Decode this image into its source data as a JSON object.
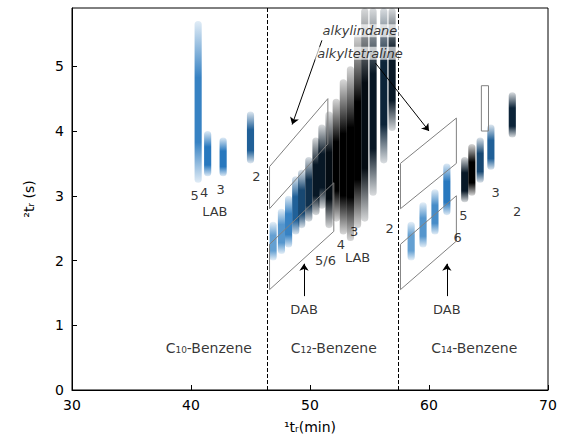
{
  "chart_data": {
    "type": "gcxgc",
    "x_label": "¹tᵣ(min)",
    "y_label": "²tᵣ (s)",
    "xlim": [
      30,
      70
    ],
    "xticks": [
      30,
      40,
      50,
      60,
      70
    ],
    "ylim": [
      0,
      5.9
    ],
    "yticks": [
      0,
      1,
      2,
      3,
      4,
      5
    ],
    "grid": false,
    "dividers": [
      46.4,
      57.4
    ],
    "peaks": [
      {
        "x": 40.6,
        "y_start": 3.2,
        "y_end": 5.7,
        "intensity": 0.45
      },
      {
        "x": 41.4,
        "y_start": 3.3,
        "y_end": 4.0,
        "intensity": 0.5
      },
      {
        "x": 42.7,
        "y_start": 3.3,
        "y_end": 3.9,
        "intensity": 0.5
      },
      {
        "x": 45.0,
        "y_start": 3.5,
        "y_end": 4.3,
        "intensity": 0.6
      },
      {
        "x": 46.9,
        "y_start": 2.0,
        "y_end": 2.6,
        "intensity": 0.3
      },
      {
        "x": 47.6,
        "y_start": 2.1,
        "y_end": 2.8,
        "intensity": 0.35
      },
      {
        "x": 48.2,
        "y_start": 2.2,
        "y_end": 3.0,
        "intensity": 0.45
      },
      {
        "x": 48.8,
        "y_start": 2.4,
        "y_end": 3.3,
        "intensity": 0.6
      },
      {
        "x": 49.3,
        "y_start": 2.5,
        "y_end": 3.4,
        "intensity": 0.7
      },
      {
        "x": 49.9,
        "y_start": 2.6,
        "y_end": 3.6,
        "intensity": 0.8
      },
      {
        "x": 50.5,
        "y_start": 2.7,
        "y_end": 3.9,
        "intensity": 0.9
      },
      {
        "x": 51.0,
        "y_start": 2.8,
        "y_end": 4.1,
        "intensity": 0.9
      },
      {
        "x": 51.6,
        "y_start": 2.5,
        "y_end": 4.3,
        "intensity": 0.95
      },
      {
        "x": 52.2,
        "y_start": 2.6,
        "y_end": 4.5,
        "intensity": 1.0
      },
      {
        "x": 52.8,
        "y_start": 2.4,
        "y_end": 4.8,
        "intensity": 1.0
      },
      {
        "x": 53.4,
        "y_start": 2.3,
        "y_end": 5.0,
        "intensity": 1.0
      },
      {
        "x": 54.0,
        "y_start": 2.5,
        "y_end": 5.5,
        "intensity": 1.0
      },
      {
        "x": 54.6,
        "y_start": 2.6,
        "y_end": 5.9,
        "intensity": 0.95
      },
      {
        "x": 55.3,
        "y_start": 3.0,
        "y_end": 5.9,
        "intensity": 0.9
      },
      {
        "x": 56.2,
        "y_start": 3.5,
        "y_end": 5.9,
        "intensity": 0.85
      },
      {
        "x": 56.9,
        "y_start": 4.0,
        "y_end": 5.9,
        "intensity": 0.9
      },
      {
        "x": 58.5,
        "y_start": 2.0,
        "y_end": 2.6,
        "intensity": 0.3
      },
      {
        "x": 59.5,
        "y_start": 2.2,
        "y_end": 2.9,
        "intensity": 0.35
      },
      {
        "x": 60.5,
        "y_start": 2.4,
        "y_end": 3.1,
        "intensity": 0.4
      },
      {
        "x": 61.5,
        "y_start": 2.7,
        "y_end": 3.5,
        "intensity": 0.5
      },
      {
        "x": 63.0,
        "y_start": 2.9,
        "y_end": 3.6,
        "intensity": 0.9
      },
      {
        "x": 63.6,
        "y_start": 3.0,
        "y_end": 3.8,
        "intensity": 1.0
      },
      {
        "x": 64.3,
        "y_start": 3.2,
        "y_end": 3.9,
        "intensity": 0.7
      },
      {
        "x": 65.2,
        "y_start": 3.4,
        "y_end": 4.1,
        "intensity": 0.6
      },
      {
        "x": 67.0,
        "y_start": 3.9,
        "y_end": 4.6,
        "intensity": 0.85
      }
    ],
    "regions": [
      [
        [
          46.6,
          1.55
        ],
        [
          46.6,
          2.25
        ],
        [
          52.0,
          3.2
        ],
        [
          52.0,
          2.45
        ]
      ],
      [
        [
          46.6,
          2.8
        ],
        [
          46.6,
          3.45
        ],
        [
          51.5,
          4.5
        ],
        [
          51.5,
          3.8
        ]
      ],
      [
        [
          57.6,
          1.55
        ],
        [
          57.6,
          2.25
        ],
        [
          62.3,
          3.0
        ],
        [
          62.3,
          2.3
        ]
      ],
      [
        [
          57.6,
          2.8
        ],
        [
          57.6,
          3.5
        ],
        [
          62.3,
          4.2
        ],
        [
          62.3,
          3.5
        ]
      ],
      [
        [
          64.4,
          4.0
        ],
        [
          64.4,
          4.7
        ],
        [
          65.0,
          4.7
        ],
        [
          65.0,
          4.0
        ]
      ]
    ],
    "arrows": [
      {
        "from": [
          51.0,
          5.4
        ],
        "to": [
          48.5,
          4.1
        ]
      },
      {
        "from": [
          55.5,
          5.05
        ],
        "to": [
          60.0,
          4.0
        ]
      },
      {
        "from": [
          49.5,
          1.45
        ],
        "to": [
          49.5,
          1.95
        ]
      },
      {
        "from": [
          61.5,
          1.45
        ],
        "to": [
          61.5,
          1.95
        ]
      }
    ],
    "region_labels": [
      {
        "text": "alkylindane",
        "x": 54.2,
        "y": 5.55
      },
      {
        "text": "alkyltetraline",
        "x": 54.2,
        "y": 5.2
      }
    ],
    "annotations": [
      {
        "text": "5",
        "x": 40.3,
        "y": 3.0
      },
      {
        "text": "4",
        "x": 41.1,
        "y": 3.05
      },
      {
        "text": "3",
        "x": 42.5,
        "y": 3.1
      },
      {
        "text": "LAB",
        "x": 42.0,
        "y": 2.75
      },
      {
        "text": "2",
        "x": 45.5,
        "y": 3.3
      },
      {
        "text": "5/6",
        "x": 51.3,
        "y": 2.0
      },
      {
        "text": "4",
        "x": 52.6,
        "y": 2.25
      },
      {
        "text": "3",
        "x": 53.7,
        "y": 2.45
      },
      {
        "text": "LAB",
        "x": 54.0,
        "y": 2.05
      },
      {
        "text": "2",
        "x": 56.7,
        "y": 2.5
      },
      {
        "text": "DAB",
        "x": 49.5,
        "y": 1.25
      },
      {
        "text": "DAB",
        "x": 61.5,
        "y": 1.25
      },
      {
        "text": "6",
        "x": 62.4,
        "y": 2.35
      },
      {
        "text": "5",
        "x": 62.9,
        "y": 2.7
      },
      {
        "text": "3",
        "x": 65.6,
        "y": 3.05
      },
      {
        "text": "2",
        "x": 67.4,
        "y": 2.75
      }
    ],
    "section_labels": [
      {
        "text": "C₁₀-Benzene",
        "x": 41.5,
        "y": 0.65
      },
      {
        "text": "C₁₂-Benzene",
        "x": 52.0,
        "y": 0.65
      },
      {
        "text": "C₁₄-Benzene",
        "x": 63.8,
        "y": 0.65
      }
    ]
  }
}
